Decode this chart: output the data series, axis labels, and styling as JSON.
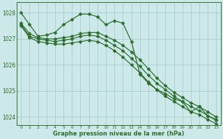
{
  "xlabel": "Graphe pression niveau de la mer (hPa)",
  "background_color": "#cce8e8",
  "grid_color": "#aacccc",
  "line_color": "#2d6e2d",
  "xlim": [
    -0.5,
    23.5
  ],
  "ylim": [
    1023.7,
    1028.4
  ],
  "yticks": [
    1024,
    1025,
    1026,
    1027,
    1028
  ],
  "xticks": [
    0,
    1,
    2,
    3,
    4,
    5,
    6,
    7,
    8,
    9,
    10,
    11,
    12,
    13,
    14,
    15,
    16,
    17,
    18,
    19,
    20,
    21,
    22,
    23
  ],
  "series": [
    {
      "x": [
        0,
        1,
        2,
        3,
        4,
        5,
        6,
        7,
        8,
        9,
        10,
        11,
        12,
        13,
        14,
        15,
        16,
        17,
        18,
        19,
        20,
        21,
        22,
        23
      ],
      "y": [
        1028.0,
        1027.55,
        1027.1,
        1027.15,
        1027.25,
        1027.55,
        1027.75,
        1027.95,
        1027.95,
        1027.85,
        1027.55,
        1027.7,
        1027.6,
        1026.9,
        1025.65,
        1025.3,
        1025.05,
        1024.9,
        1024.7,
        1024.6,
        1024.2,
        1024.4,
        1024.05,
        1023.9
      ],
      "marker": "D",
      "markersize": 2.5,
      "lw": 0.9
    },
    {
      "x": [
        0,
        1,
        2,
        3,
        4,
        5,
        6,
        7,
        8,
        9,
        10,
        11,
        12,
        13,
        14,
        15,
        16,
        17,
        18,
        19,
        20,
        21,
        22,
        23
      ],
      "y": [
        1027.6,
        1027.2,
        1027.05,
        1027.0,
        1027.0,
        1027.05,
        1027.1,
        1027.2,
        1027.25,
        1027.25,
        1027.1,
        1026.95,
        1026.75,
        1026.5,
        1026.2,
        1025.85,
        1025.5,
        1025.2,
        1024.95,
        1024.75,
        1024.55,
        1024.4,
        1024.2,
        1024.0
      ],
      "marker": "D",
      "markersize": 2.5,
      "lw": 0.9
    },
    {
      "x": [
        0,
        1,
        2,
        3,
        4,
        5,
        6,
        7,
        8,
        9,
        10,
        11,
        12,
        13,
        14,
        15,
        16,
        17,
        18,
        19,
        20,
        21,
        22,
        23
      ],
      "y": [
        1027.55,
        1027.1,
        1027.0,
        1026.95,
        1026.9,
        1026.95,
        1027.0,
        1027.1,
        1027.15,
        1027.1,
        1026.95,
        1026.75,
        1026.55,
        1026.25,
        1025.95,
        1025.6,
        1025.3,
        1025.05,
        1024.8,
        1024.6,
        1024.4,
        1024.25,
        1024.05,
        1023.87
      ],
      "marker": "D",
      "markersize": 2.5,
      "lw": 0.9
    },
    {
      "x": [
        0,
        1,
        2,
        3,
        4,
        5,
        6,
        7,
        8,
        9,
        10,
        11,
        12,
        13,
        14,
        15,
        16,
        17,
        18,
        19,
        20,
        21,
        22,
        23
      ],
      "y": [
        1027.5,
        1027.05,
        1026.9,
        1026.85,
        1026.8,
        1026.8,
        1026.85,
        1026.9,
        1026.95,
        1026.9,
        1026.75,
        1026.55,
        1026.3,
        1026.0,
        1025.7,
        1025.35,
        1025.05,
        1024.8,
        1024.6,
        1024.4,
        1024.2,
        1024.1,
        1023.9,
        1023.75
      ],
      "marker": "D",
      "markersize": 2.5,
      "lw": 0.9
    }
  ]
}
